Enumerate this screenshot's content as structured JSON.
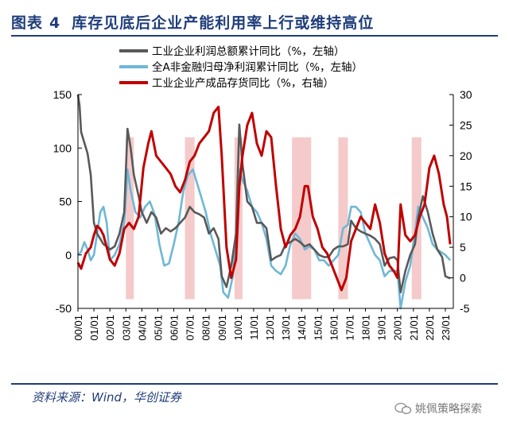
{
  "header": {
    "figure_label": "图表",
    "figure_number": "4",
    "title": "库存见底后企业产能利用率上行或维持高位"
  },
  "source": "资料来源：Wind，华创证券",
  "watermark": "姚佩策略探索",
  "colors": {
    "profit_total": "#595959",
    "a_share_nonfin": "#6fb7d7",
    "inventory": "#c00000",
    "shade": "#f2b8b8",
    "title": "#1f3d7a"
  },
  "chart_data": {
    "type": "line",
    "x_tick_labels": [
      "00/01",
      "01/01",
      "02/01",
      "03/01",
      "04/01",
      "05/01",
      "06/01",
      "07/01",
      "08/01",
      "09/01",
      "10/01",
      "11/01",
      "12/01",
      "13/01",
      "14/01",
      "15/01",
      "16/01",
      "17/01",
      "18/01",
      "19/01",
      "20/01",
      "21/01",
      "22/01",
      "23/01"
    ],
    "y_left": {
      "ticks": [
        "150",
        "100",
        "50",
        "0",
        "-50"
      ],
      "range": [
        -50,
        150
      ]
    },
    "y_right": {
      "ticks": [
        "30",
        "25",
        "20",
        "15",
        "10",
        "5",
        "0",
        "-5"
      ],
      "range": [
        -5,
        30
      ]
    },
    "legend": [
      "工业企业利润总额累计同比（%，左轴）",
      "全A非金融归母净利润累计同比（%，左轴）",
      "工业企业产成品存货同比（%，右轴）"
    ],
    "shaded_periods": [
      {
        "start": 2003.0,
        "end": 2003.5
      },
      {
        "start": 2006.7,
        "end": 2007.3
      },
      {
        "start": 2009.8,
        "end": 2010.3
      },
      {
        "start": 2013.4,
        "end": 2014.6
      },
      {
        "start": 2016.3,
        "end": 2016.9
      },
      {
        "start": 2020.9,
        "end": 2021.5
      }
    ],
    "series": [
      {
        "name": "工业企业利润总额累计同比（%，左轴）",
        "axis": "left",
        "points": [
          [
            2000.0,
            150
          ],
          [
            2000.1,
            140
          ],
          [
            2000.2,
            115
          ],
          [
            2000.4,
            105
          ],
          [
            2000.6,
            95
          ],
          [
            2000.8,
            75
          ],
          [
            2001.0,
            30
          ],
          [
            2001.2,
            20
          ],
          [
            2001.4,
            15
          ],
          [
            2001.6,
            10
          ],
          [
            2001.8,
            8
          ],
          [
            2002.0,
            5
          ],
          [
            2002.3,
            8
          ],
          [
            2002.6,
            20
          ],
          [
            2002.9,
            40
          ],
          [
            2003.1,
            118
          ],
          [
            2003.3,
            100
          ],
          [
            2003.5,
            75
          ],
          [
            2003.8,
            55
          ],
          [
            2004.0,
            40
          ],
          [
            2004.3,
            30
          ],
          [
            2004.6,
            40
          ],
          [
            2004.9,
            35
          ],
          [
            2005.2,
            20
          ],
          [
            2005.5,
            25
          ],
          [
            2005.8,
            22
          ],
          [
            2006.1,
            25
          ],
          [
            2006.4,
            30
          ],
          [
            2006.7,
            35
          ],
          [
            2007.0,
            45
          ],
          [
            2007.3,
            40
          ],
          [
            2007.6,
            38
          ],
          [
            2007.9,
            35
          ],
          [
            2008.2,
            20
          ],
          [
            2008.5,
            25
          ],
          [
            2008.8,
            15
          ],
          [
            2009.0,
            -20
          ],
          [
            2009.3,
            -30
          ],
          [
            2009.6,
            -10
          ],
          [
            2009.9,
            20
          ],
          [
            2010.1,
            122
          ],
          [
            2010.3,
            85
          ],
          [
            2010.6,
            50
          ],
          [
            2010.9,
            45
          ],
          [
            2011.2,
            30
          ],
          [
            2011.5,
            30
          ],
          [
            2011.8,
            25
          ],
          [
            2012.1,
            -5
          ],
          [
            2012.4,
            -2
          ],
          [
            2012.7,
            0
          ],
          [
            2013.0,
            10
          ],
          [
            2013.3,
            12
          ],
          [
            2013.6,
            15
          ],
          [
            2013.9,
            12
          ],
          [
            2014.2,
            8
          ],
          [
            2014.5,
            10
          ],
          [
            2014.8,
            5
          ],
          [
            2015.1,
            0
          ],
          [
            2015.4,
            -2
          ],
          [
            2015.7,
            -2
          ],
          [
            2016.0,
            5
          ],
          [
            2016.3,
            8
          ],
          [
            2016.6,
            8
          ],
          [
            2016.9,
            10
          ],
          [
            2017.1,
            32
          ],
          [
            2017.4,
            25
          ],
          [
            2017.7,
            22
          ],
          [
            2018.0,
            20
          ],
          [
            2018.3,
            18
          ],
          [
            2018.6,
            15
          ],
          [
            2018.9,
            10
          ],
          [
            2019.2,
            -10
          ],
          [
            2019.5,
            -3
          ],
          [
            2019.8,
            -2
          ],
          [
            2020.0,
            -5
          ],
          [
            2020.2,
            -35
          ],
          [
            2020.5,
            -15
          ],
          [
            2020.8,
            0
          ],
          [
            2021.1,
            10
          ],
          [
            2021.3,
            35
          ],
          [
            2021.6,
            55
          ],
          [
            2021.9,
            40
          ],
          [
            2022.2,
            20
          ],
          [
            2022.5,
            5
          ],
          [
            2022.8,
            -2
          ],
          [
            2023.0,
            -20
          ],
          [
            2023.3,
            -22
          ]
        ]
      },
      {
        "name": "全A非金融归母净利润累计同比（%，左轴）",
        "axis": "left",
        "points": [
          [
            2000.0,
            0
          ],
          [
            2000.2,
            3
          ],
          [
            2000.4,
            12
          ],
          [
            2000.6,
            5
          ],
          [
            2000.8,
            -5
          ],
          [
            2001.0,
            0
          ],
          [
            2001.2,
            20
          ],
          [
            2001.4,
            40
          ],
          [
            2001.6,
            45
          ],
          [
            2001.8,
            30
          ],
          [
            2002.0,
            -5
          ],
          [
            2002.3,
            0
          ],
          [
            2002.6,
            10
          ],
          [
            2002.9,
            30
          ],
          [
            2003.1,
            80
          ],
          [
            2003.3,
            60
          ],
          [
            2003.6,
            40
          ],
          [
            2003.9,
            35
          ],
          [
            2004.2,
            45
          ],
          [
            2004.5,
            50
          ],
          [
            2004.8,
            38
          ],
          [
            2005.1,
            10
          ],
          [
            2005.4,
            -10
          ],
          [
            2005.7,
            -8
          ],
          [
            2006.0,
            10
          ],
          [
            2006.3,
            30
          ],
          [
            2006.6,
            60
          ],
          [
            2006.9,
            75
          ],
          [
            2007.2,
            80
          ],
          [
            2007.4,
            70
          ],
          [
            2007.7,
            55
          ],
          [
            2008.0,
            40
          ],
          [
            2008.3,
            20
          ],
          [
            2008.6,
            5
          ],
          [
            2008.9,
            -10
          ],
          [
            2009.1,
            -35
          ],
          [
            2009.4,
            -40
          ],
          [
            2009.7,
            -20
          ],
          [
            2009.9,
            20
          ],
          [
            2010.1,
            80
          ],
          [
            2010.3,
            70
          ],
          [
            2010.6,
            60
          ],
          [
            2010.9,
            45
          ],
          [
            2011.2,
            40
          ],
          [
            2011.5,
            30
          ],
          [
            2011.8,
            15
          ],
          [
            2012.1,
            -10
          ],
          [
            2012.4,
            -15
          ],
          [
            2012.7,
            -18
          ],
          [
            2013.0,
            -10
          ],
          [
            2013.3,
            10
          ],
          [
            2013.6,
            20
          ],
          [
            2013.9,
            15
          ],
          [
            2014.2,
            5
          ],
          [
            2014.5,
            8
          ],
          [
            2014.8,
            5
          ],
          [
            2015.1,
            -5
          ],
          [
            2015.4,
            -5
          ],
          [
            2015.7,
            -10
          ],
          [
            2016.0,
            -5
          ],
          [
            2016.3,
            0
          ],
          [
            2016.6,
            25
          ],
          [
            2016.9,
            28
          ],
          [
            2017.1,
            45
          ],
          [
            2017.4,
            45
          ],
          [
            2017.7,
            40
          ],
          [
            2018.0,
            20
          ],
          [
            2018.3,
            10
          ],
          [
            2018.6,
            0
          ],
          [
            2018.9,
            -5
          ],
          [
            2019.2,
            -20
          ],
          [
            2019.5,
            -15
          ],
          [
            2019.8,
            -15
          ],
          [
            2020.0,
            -15
          ],
          [
            2020.2,
            -50
          ],
          [
            2020.5,
            -25
          ],
          [
            2020.8,
            -10
          ],
          [
            2021.1,
            20
          ],
          [
            2021.3,
            45
          ],
          [
            2021.6,
            35
          ],
          [
            2021.9,
            25
          ],
          [
            2022.2,
            10
          ],
          [
            2022.5,
            5
          ],
          [
            2022.8,
            2
          ],
          [
            2023.0,
            0
          ],
          [
            2023.3,
            -5
          ]
        ]
      },
      {
        "name": "工业企业产成品存货同比（%，右轴）",
        "axis": "right",
        "points": [
          [
            2000.0,
            2.5
          ],
          [
            2000.2,
            1.5
          ],
          [
            2000.5,
            4
          ],
          [
            2000.8,
            5
          ],
          [
            2001.0,
            7
          ],
          [
            2001.2,
            8.5
          ],
          [
            2001.4,
            8
          ],
          [
            2001.6,
            7
          ],
          [
            2001.8,
            5
          ],
          [
            2002.0,
            3
          ],
          [
            2002.3,
            2
          ],
          [
            2002.6,
            4
          ],
          [
            2002.9,
            8
          ],
          [
            2003.2,
            9
          ],
          [
            2003.5,
            8
          ],
          [
            2003.8,
            10
          ],
          [
            2004.1,
            18
          ],
          [
            2004.4,
            22
          ],
          [
            2004.6,
            24
          ],
          [
            2004.9,
            20
          ],
          [
            2005.2,
            19
          ],
          [
            2005.5,
            18
          ],
          [
            2005.8,
            17
          ],
          [
            2006.1,
            15
          ],
          [
            2006.4,
            14
          ],
          [
            2006.7,
            16
          ],
          [
            2007.0,
            19
          ],
          [
            2007.3,
            20
          ],
          [
            2007.6,
            22
          ],
          [
            2007.9,
            23
          ],
          [
            2008.2,
            24
          ],
          [
            2008.5,
            27
          ],
          [
            2008.8,
            28
          ],
          [
            2009.0,
            20
          ],
          [
            2009.3,
            5
          ],
          [
            2009.6,
            0
          ],
          [
            2009.9,
            3
          ],
          [
            2010.1,
            15
          ],
          [
            2010.3,
            20
          ],
          [
            2010.6,
            25
          ],
          [
            2010.9,
            27
          ],
          [
            2011.2,
            22
          ],
          [
            2011.5,
            20
          ],
          [
            2011.8,
            24
          ],
          [
            2012.1,
            23
          ],
          [
            2012.4,
            15
          ],
          [
            2012.7,
            8
          ],
          [
            2013.0,
            5
          ],
          [
            2013.3,
            7
          ],
          [
            2013.6,
            8
          ],
          [
            2013.9,
            10
          ],
          [
            2014.2,
            15
          ],
          [
            2014.4,
            15
          ],
          [
            2014.7,
            10
          ],
          [
            2015.0,
            8
          ],
          [
            2015.3,
            5
          ],
          [
            2015.6,
            4
          ],
          [
            2015.9,
            2
          ],
          [
            2016.2,
            0
          ],
          [
            2016.5,
            -2
          ],
          [
            2016.8,
            0
          ],
          [
            2017.1,
            6
          ],
          [
            2017.4,
            8
          ],
          [
            2017.7,
            10
          ],
          [
            2018.0,
            9
          ],
          [
            2018.3,
            8
          ],
          [
            2018.6,
            12
          ],
          [
            2018.9,
            9
          ],
          [
            2019.2,
            4
          ],
          [
            2019.5,
            2
          ],
          [
            2019.8,
            1
          ],
          [
            2020.0,
            0
          ],
          [
            2020.2,
            12
          ],
          [
            2020.5,
            7
          ],
          [
            2020.8,
            6
          ],
          [
            2021.1,
            7
          ],
          [
            2021.4,
            10
          ],
          [
            2021.7,
            12
          ],
          [
            2022.0,
            18
          ],
          [
            2022.3,
            20
          ],
          [
            2022.6,
            17
          ],
          [
            2022.9,
            12
          ],
          [
            2023.1,
            10
          ],
          [
            2023.3,
            5.5
          ]
        ]
      }
    ]
  }
}
